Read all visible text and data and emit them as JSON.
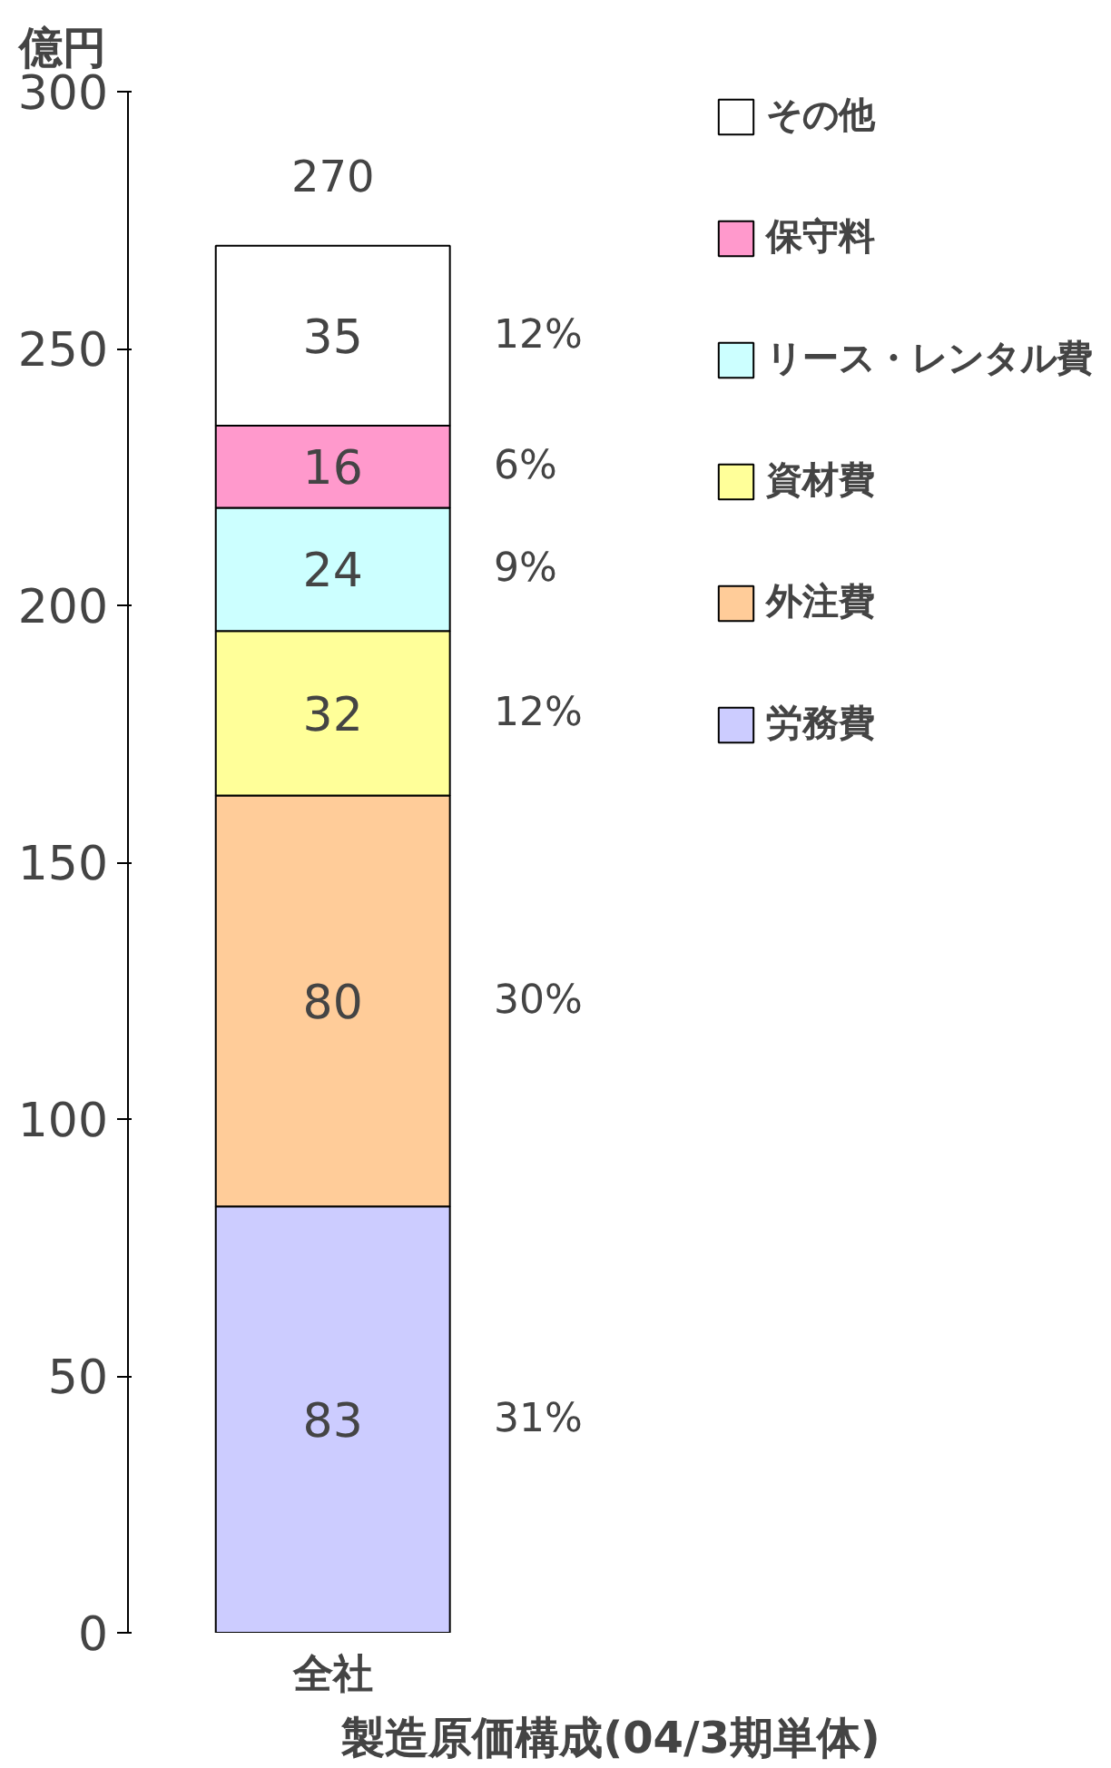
{
  "chart_data": {
    "type": "bar",
    "stacked": true,
    "ylabel": "億円",
    "xlabel": "製造原価構成(04/3期単体)",
    "categories": [
      "全社"
    ],
    "series": [
      {
        "name": "労務費",
        "color": "#ccccff",
        "values": [
          83
        ]
      },
      {
        "name": "外注費",
        "color": "#ffcc99",
        "values": [
          80
        ]
      },
      {
        "name": "資材費",
        "color": "#ffff99",
        "values": [
          32
        ]
      },
      {
        "name": "リース・レンタル費",
        "color": "#ccffff",
        "values": [
          24
        ]
      },
      {
        "name": "保守料",
        "color": "#ff99cc",
        "values": [
          16
        ]
      },
      {
        "name": "その他",
        "color": "#ffffff",
        "values": [
          35
        ]
      }
    ],
    "data_labels": true,
    "totals": [
      "270"
    ],
    "annotations": [
      "31%",
      "30%",
      "12%",
      "9%",
      "6%",
      "12%"
    ],
    "ylim": [
      0,
      300
    ],
    "yticks": [
      0,
      50,
      100,
      150,
      200,
      250,
      300
    ],
    "grid": false,
    "legend": "right"
  }
}
